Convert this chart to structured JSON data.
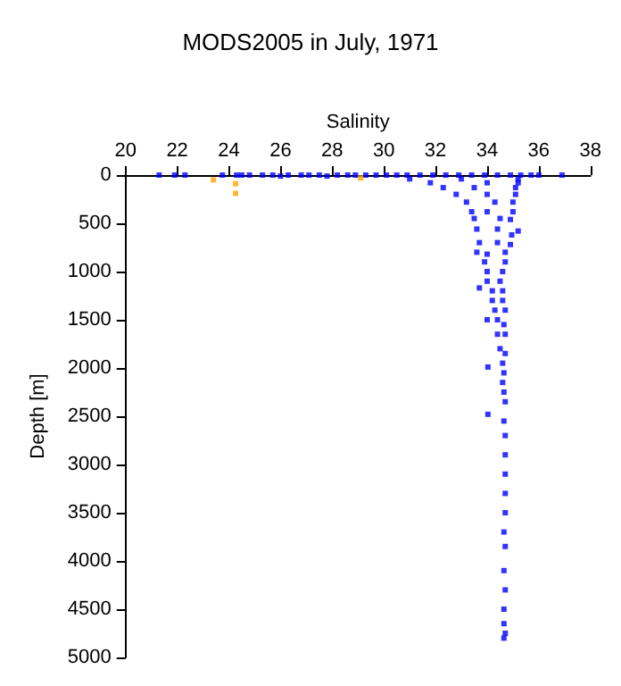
{
  "chart_data": {
    "type": "scatter",
    "title": "MODS2005 in July, 1971",
    "xlabel": "Salinity",
    "ylabel": "Depth [m]",
    "xlim": [
      20,
      38
    ],
    "xticks": [
      20,
      22,
      24,
      26,
      28,
      30,
      32,
      34,
      36,
      38
    ],
    "ylim": [
      5000,
      0
    ],
    "yticks": [
      0,
      500,
      1000,
      1500,
      2000,
      2500,
      3000,
      3500,
      4000,
      4500,
      5000
    ],
    "grid": false,
    "marker": "square",
    "series": [
      {
        "color": "#0000ff",
        "x": [
          21.3,
          21.9,
          22.3,
          23.75,
          24.3,
          24.5,
          24.8,
          25.3,
          25.7,
          26.0,
          26.3,
          26.8,
          27.1,
          27.5,
          27.8,
          28.2,
          28.6,
          28.9,
          29.3,
          29.7,
          30.1,
          30.5,
          30.9,
          31.4,
          31.9,
          32.4,
          32.9,
          33.4,
          33.9,
          34.4,
          34.9,
          35.3,
          35.7,
          36.0,
          36.9,
          31.0,
          33.0,
          35.2,
          31.8,
          34.0,
          35.2,
          32.3,
          33.5,
          35.1,
          32.8,
          34.0,
          35.1,
          33.2,
          34.3,
          35.0,
          33.4,
          34.0,
          35.0,
          33.5,
          34.5,
          34.9,
          35.2,
          33.6,
          34.4,
          34.95,
          33.7,
          34.4,
          34.9,
          33.6,
          34.0,
          34.7,
          33.9,
          34.7,
          34.0,
          34.6,
          34.0,
          34.5,
          33.7,
          34.2,
          34.6,
          34.2,
          34.6,
          34.3,
          34.7,
          34.0,
          34.4,
          34.65,
          34.4,
          34.7,
          34.5,
          34.7,
          34.6,
          34.03,
          34.65,
          34.6,
          34.65,
          34.7,
          34.03,
          34.65,
          34.7,
          34.7,
          34.7,
          34.7,
          34.7,
          34.65,
          34.7,
          34.65,
          34.7,
          34.65,
          34.65,
          34.7,
          34.65
        ],
        "values": [
          0,
          0,
          0,
          0,
          0,
          0,
          0,
          0,
          0,
          10,
          0,
          0,
          0,
          0,
          10,
          0,
          0,
          0,
          0,
          0,
          0,
          0,
          0,
          0,
          0,
          0,
          0,
          0,
          0,
          0,
          0,
          0,
          0,
          0,
          0,
          40,
          40,
          40,
          80,
          80,
          80,
          130,
          130,
          130,
          200,
          200,
          200,
          280,
          280,
          280,
          380,
          380,
          380,
          450,
          450,
          460,
          580,
          560,
          560,
          620,
          700,
          700,
          720,
          800,
          820,
          800,
          900,
          900,
          1000,
          1000,
          1100,
          1100,
          1170,
          1200,
          1200,
          1300,
          1300,
          1400,
          1400,
          1500,
          1500,
          1550,
          1650,
          1650,
          1800,
          1850,
          1950,
          1990,
          2050,
          2150,
          2250,
          2350,
          2480,
          2550,
          2700,
          2900,
          3100,
          3300,
          3500,
          3700,
          3850,
          4100,
          4300,
          4500,
          4650,
          4750,
          4800
        ]
      },
      {
        "color": "#ffa500",
        "x": [
          23.4,
          24.26,
          24.26,
          29.1
        ],
        "values": [
          50,
          90,
          190,
          30
        ]
      }
    ]
  }
}
